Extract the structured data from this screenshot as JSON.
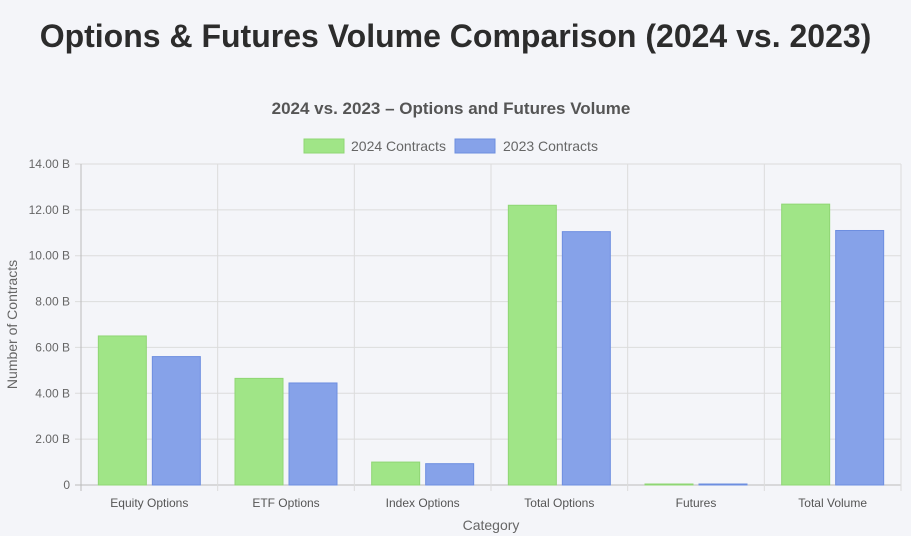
{
  "page": {
    "title": "Options & Futures Volume Comparison (2024 vs. 2023)"
  },
  "chart_data": {
    "type": "bar",
    "title": "2024 vs. 2023 – Options and Futures Volume",
    "xlabel": "Category",
    "ylabel": "Number of Contracts",
    "categories": [
      "Equity Options",
      "ETF Options",
      "Index Options",
      "Total Options",
      "Futures",
      "Total Volume"
    ],
    "series": [
      {
        "name": "2024 Contracts",
        "values": [
          6.5,
          4.65,
          1.0,
          12.2,
          0.03,
          12.25
        ],
        "color": "#a0e587",
        "border": "#8fd674"
      },
      {
        "name": "2023 Contracts",
        "values": [
          5.6,
          4.45,
          0.93,
          11.05,
          0.02,
          11.1
        ],
        "color": "#86a2e9",
        "border": "#6d8ee0"
      }
    ],
    "unit": "billion contracts",
    "ylim": [
      0,
      14
    ],
    "yticks": [
      "0",
      "2.00 B",
      "4.00 B",
      "6.00 B",
      "8.00 B",
      "10.00 B",
      "12.00 B",
      "14.00 B"
    ],
    "grid": true,
    "legend_position": "top"
  }
}
